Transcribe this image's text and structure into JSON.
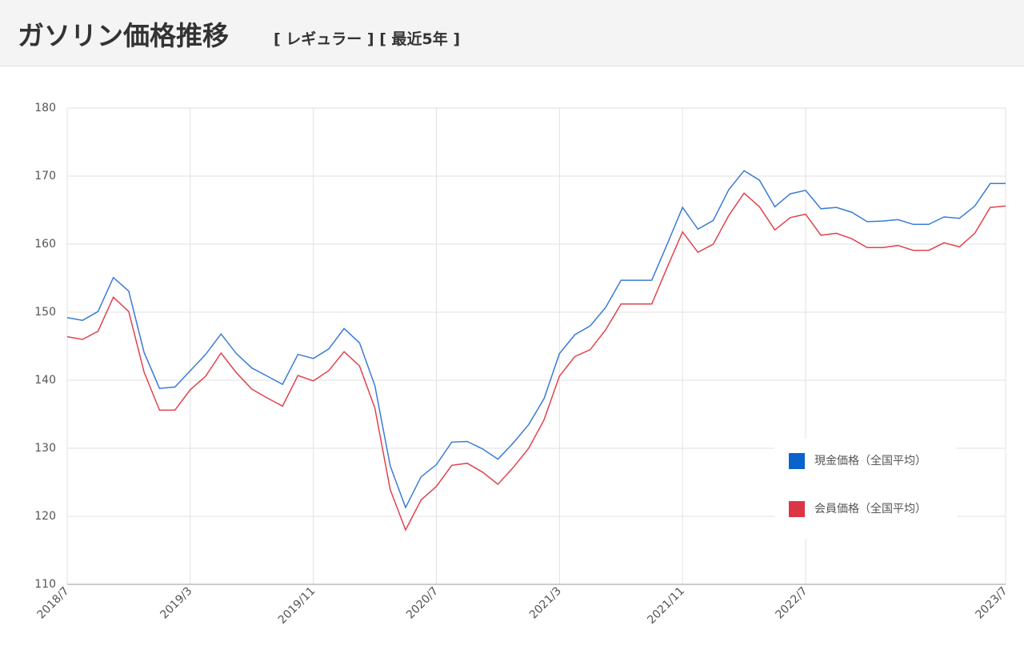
{
  "header": {
    "title": "ガソリン価格推移",
    "subtitle": "[ レギュラー ] [ 最近5年 ]"
  },
  "chart_data": {
    "type": "line",
    "categories": [
      "2018/7",
      null,
      null,
      null,
      null,
      null,
      null,
      null,
      "2019/3",
      null,
      null,
      null,
      null,
      null,
      null,
      null,
      "2019/11",
      null,
      null,
      null,
      null,
      null,
      null,
      null,
      "2020/7",
      null,
      null,
      null,
      null,
      null,
      null,
      null,
      "2021/3",
      null,
      null,
      null,
      null,
      null,
      null,
      null,
      "2021/11",
      null,
      null,
      null,
      null,
      null,
      null,
      null,
      "2022/7",
      null,
      null,
      null,
      null,
      null,
      null,
      null,
      null,
      null,
      null,
      null,
      null,
      "2023/7"
    ],
    "series": [
      {
        "name": "現金価格（全国平均）",
        "color": "#3a7bd5",
        "legend_color": "#0a63c9",
        "values": [
          149.2,
          148.8,
          150.1,
          155.1,
          153.1,
          144.1,
          138.8,
          139.0,
          141.4,
          143.8,
          146.8,
          143.9,
          141.8,
          140.6,
          139.4,
          143.8,
          143.2,
          144.6,
          147.6,
          145.5,
          139.2,
          127.4,
          121.3,
          125.8,
          127.6,
          130.9,
          131.0,
          129.9,
          128.4,
          130.8,
          133.5,
          137.3,
          143.9,
          146.7,
          148.0,
          150.7,
          154.7,
          154.7,
          154.7,
          160.0,
          165.4,
          162.2,
          163.5,
          168.0,
          170.8,
          169.4,
          165.5,
          167.4,
          167.9,
          165.2,
          165.4,
          164.7,
          163.3,
          163.4,
          163.6,
          162.9,
          162.9,
          164.0,
          163.8,
          165.6,
          168.9,
          168.9
        ]
      },
      {
        "name": "会員価格（全国平均）",
        "color": "#e0434f",
        "legend_color": "#dc3545",
        "values": [
          146.4,
          146.0,
          147.2,
          152.2,
          150.1,
          141.2,
          135.6,
          135.6,
          138.6,
          140.6,
          144.0,
          141.1,
          138.7,
          137.4,
          136.2,
          140.7,
          139.9,
          141.4,
          144.2,
          142.1,
          135.9,
          123.9,
          118.0,
          122.4,
          124.4,
          127.5,
          127.8,
          126.5,
          124.7,
          127.2,
          130.0,
          134.2,
          140.6,
          143.5,
          144.5,
          147.4,
          151.2,
          151.2,
          151.2,
          156.6,
          161.8,
          158.8,
          160.0,
          164.2,
          167.5,
          165.5,
          162.1,
          163.9,
          164.4,
          161.3,
          161.6,
          160.8,
          159.5,
          159.5,
          159.8,
          159.1,
          159.1,
          160.2,
          159.6,
          161.6,
          165.4,
          165.6
        ]
      }
    ],
    "ylim": [
      110,
      180
    ],
    "yticks": [
      110,
      120,
      130,
      140,
      150,
      160,
      170,
      180
    ],
    "grid": true,
    "legend": "lower right"
  }
}
